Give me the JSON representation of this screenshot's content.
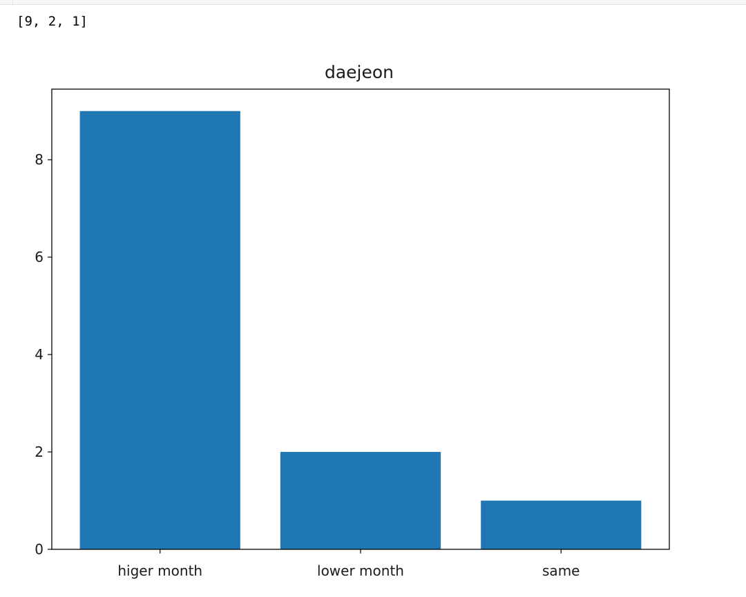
{
  "output": {
    "printed_list": "[9, 2, 1]"
  },
  "chart_data": {
    "type": "bar",
    "title": "daejeon",
    "categories": [
      "higer month",
      "lower month",
      "same"
    ],
    "values": [
      9,
      2,
      1
    ],
    "xlabel": "",
    "ylabel": "",
    "ylim": [
      0,
      9.45
    ],
    "yticks": [
      0,
      2,
      4,
      6,
      8
    ],
    "bar_color": "#1f77b4",
    "grid": false,
    "legend": "none"
  }
}
